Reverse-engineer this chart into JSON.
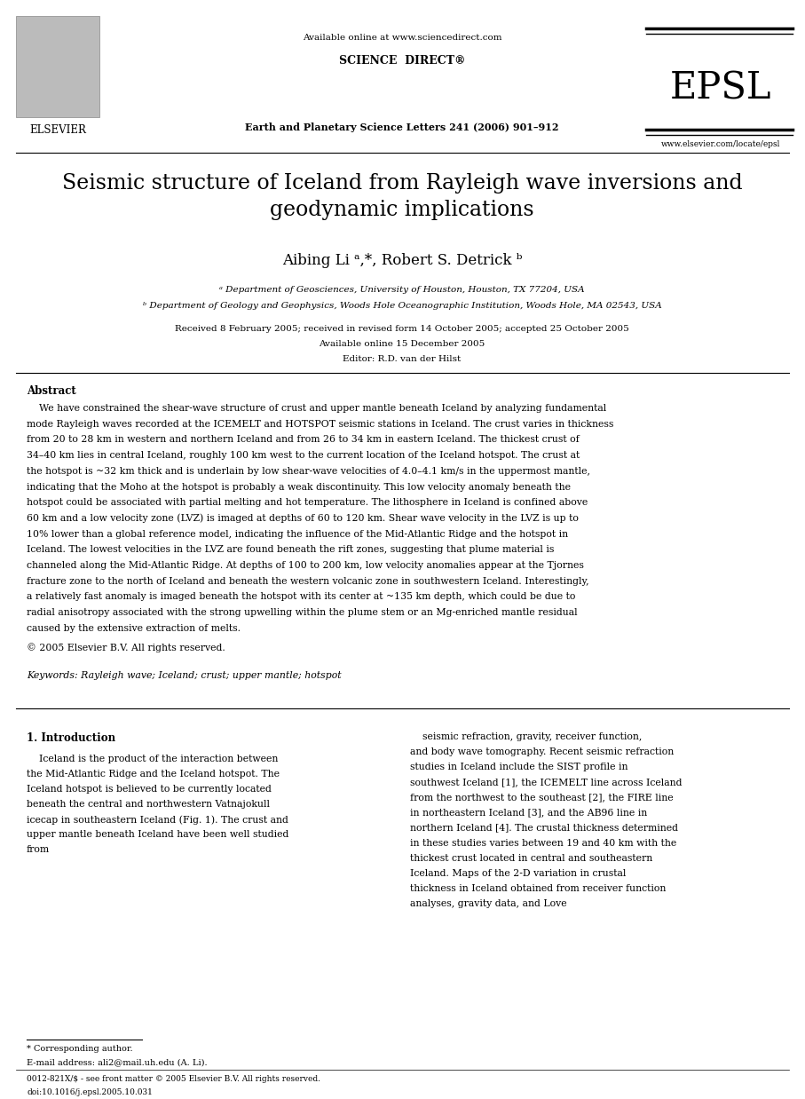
{
  "background_color": "#ffffff",
  "page_width": 9.07,
  "page_height": 12.38,
  "header": {
    "available_online_text": "Available online at www.sciencedirect.com",
    "sciencedirect_text": "SCIENCE  DIRECT®",
    "journal_text": "Earth and Planetary Science Letters 241 (2006) 901–912",
    "epsl_text": "EPSL",
    "url_text": "www.elsevier.com/locate/epsl",
    "elsevier_text": "ELSEVIER"
  },
  "title": "Seismic structure of Iceland from Rayleigh wave inversions and\ngeodynamic implications",
  "authors": "Aibing Li ᵃ,*, Robert S. Detrick ᵇ",
  "affil_a": "ᵃ Department of Geosciences, University of Houston, Houston, TX 77204, USA",
  "affil_b": "ᵇ Department of Geology and Geophysics, Woods Hole Oceanographic Institution, Woods Hole, MA 02543, USA",
  "received_text": "Received 8 February 2005; received in revised form 14 October 2005; accepted 25 October 2005",
  "available_text": "Available online 15 December 2005",
  "editor_text": "Editor: R.D. van der Hilst",
  "abstract_label": "Abstract",
  "abstract_text": "We have constrained the shear-wave structure of crust and upper mantle beneath Iceland by analyzing fundamental mode Rayleigh waves recorded at the ICEMELT and HOTSPOT seismic stations in Iceland. The crust varies in thickness from 20 to 28 km in western and northern Iceland and from 26 to 34 km in eastern Iceland. The thickest crust of 34–40 km lies in central Iceland, roughly 100 km west to the current location of the Iceland hotspot. The crust at the hotspot is ~32 km thick and is underlain by low shear-wave velocities of 4.0–4.1 km/s in the uppermost mantle, indicating that the Moho at the hotspot is probably a weak discontinuity. This low velocity anomaly beneath the hotspot could be associated with partial melting and hot temperature. The lithosphere in Iceland is confined above 60 km and a low velocity zone (LVZ) is imaged at depths of 60 to 120 km. Shear wave velocity in the LVZ is up to 10% lower than a global reference model, indicating the influence of the Mid-Atlantic Ridge and the hotspot in Iceland. The lowest velocities in the LVZ are found beneath the rift zones, suggesting that plume material is channeled along the Mid-Atlantic Ridge. At depths of 100 to 200 km, low velocity anomalies appear at the Tjornes fracture zone to the north of Iceland and beneath the western volcanic zone in southwestern Iceland. Interestingly, a relatively fast anomaly is imaged beneath the hotspot with its center at ~135 km depth, which could be due to radial anisotropy associated with the strong upwelling within the plume stem or an Mg-enriched mantle residual caused by the extensive extraction of melts.",
  "copyright_text": "© 2005 Elsevier B.V. All rights reserved.",
  "keywords_text": "Keywords: Rayleigh wave; Iceland; crust; upper mantle; hotspot",
  "section1_title": "1. Introduction",
  "col1_text": "Iceland is the product of the interaction between the Mid-Atlantic Ridge and the Iceland hotspot. The Iceland hotspot is believed to be currently located beneath the central and northwestern Vatnajokull icecap in southeastern Iceland (Fig. 1). The crust and upper mantle beneath Iceland have been well studied from",
  "col2_text": "seismic refraction, gravity, receiver function, and body wave tomography. Recent seismic refraction studies in Iceland include the SIST profile in southwest Iceland [1], the ICEMELT line across Iceland from the northwest to the southeast [2], the FIRE line in northeastern Iceland [3], and the AB96 line in northern Iceland [4]. The crustal thickness determined in these studies varies between 19 and 40 km with the thickest crust located in central and southeastern Iceland. Maps of the 2-D variation in crustal thickness in Iceland obtained from receiver function analyses, gravity data, and Love",
  "footnote_star": "* Corresponding author.",
  "footnote_email": "E-mail address: ali2@mail.uh.edu (A. Li).",
  "footer_issn": "0012-821X/$ - see front matter © 2005 Elsevier B.V. All rights reserved.",
  "footer_doi": "doi:10.1016/j.epsl.2005.10.031"
}
